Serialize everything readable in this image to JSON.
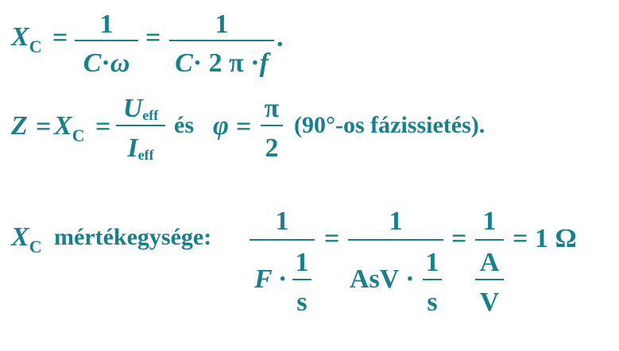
{
  "line1": {
    "lhs_var": "X",
    "lhs_sub": "C",
    "eq1": "=",
    "frac1_num": "1",
    "frac1_den_a": "C",
    "frac1_den_dot": "·",
    "frac1_den_b": "ω",
    "eq2": "=",
    "frac2_num": "1",
    "frac2_den_a": "C",
    "frac2_den_b": "· 2 π ·",
    "frac2_den_c": "f",
    "period": "."
  },
  "line2": {
    "z": "Z",
    "eq1": "=",
    "x": "X",
    "x_sub": "C",
    "eq2": "=",
    "num_var": "U",
    "num_sub": "eff",
    "den_var": "I",
    "den_sub": "eff",
    "es": "és",
    "phi": "φ",
    "eq3": "=",
    "pi_num": "π",
    "pi_den": "2",
    "note": "(90°-os fázissietés)."
  },
  "line3": {
    "x": "X",
    "x_sub": "C",
    "label": "mértékegysége:",
    "f1_num": "1",
    "f1_den_a": "F",
    "f1_den_dot": "·",
    "f1_inner_num": "1",
    "f1_inner_den": "s",
    "eq1": "=",
    "f2_num": "1",
    "f2_den_a": "AsV ·",
    "f2_inner_num": "1",
    "f2_inner_den": "s",
    "eq2": "=",
    "f3_num": "1",
    "f3_inner_num": "A",
    "f3_inner_den": "V",
    "eq3": "=",
    "result": "1 Ω"
  }
}
